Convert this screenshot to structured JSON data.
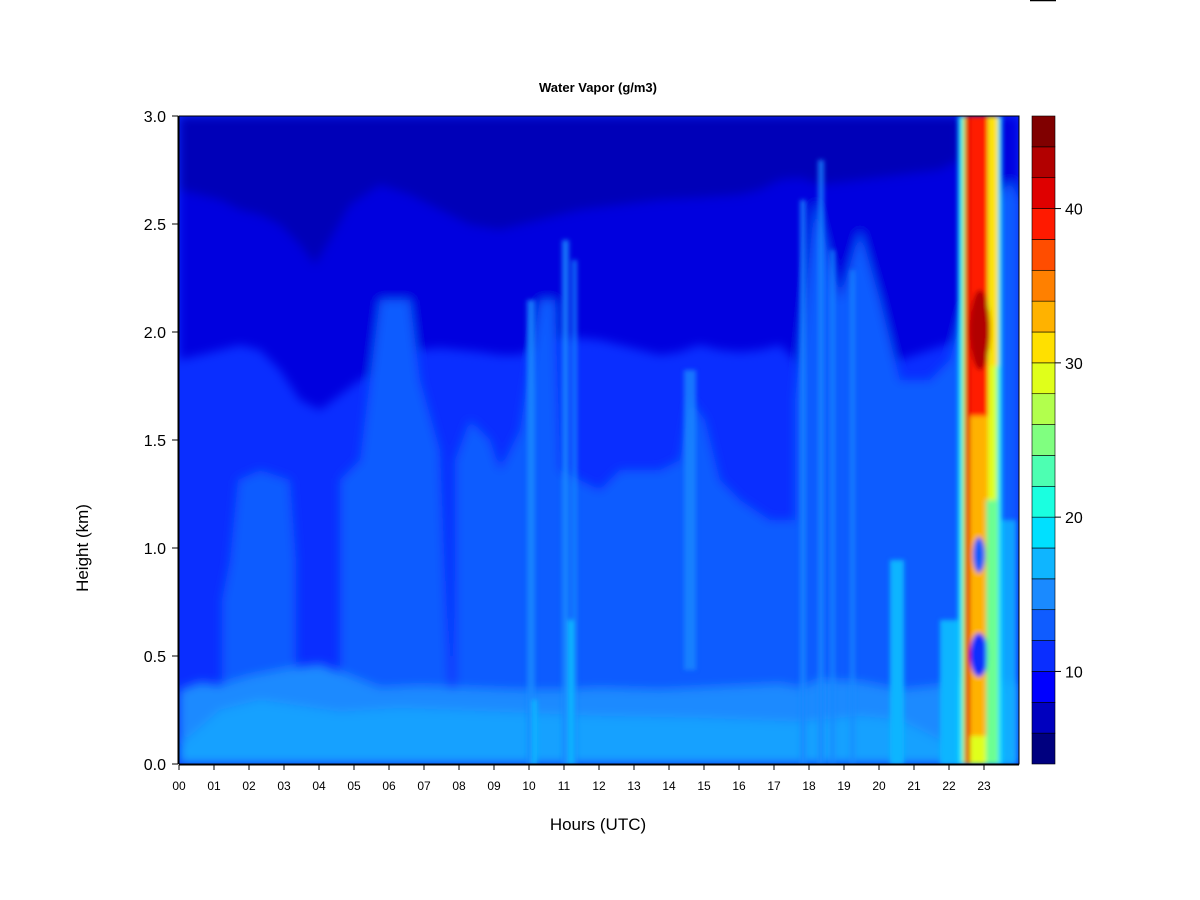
{
  "chart_data": {
    "type": "heatmap",
    "title": "Water Vapor (g/m3)",
    "xlabel": "Hours (UTC)",
    "ylabel": "Height (km)",
    "xlim": [
      0,
      24
    ],
    "ylim": [
      0,
      3.0
    ],
    "x_ticks": [
      "00",
      "01",
      "02",
      "03",
      "04",
      "05",
      "06",
      "07",
      "08",
      "09",
      "10",
      "11",
      "12",
      "13",
      "14",
      "15",
      "16",
      "17",
      "18",
      "19",
      "20",
      "21",
      "22",
      "23"
    ],
    "y_ticks": [
      "0.0",
      "0.5",
      "1.0",
      "1.5",
      "2.0",
      "2.5",
      "3.0"
    ],
    "colorbar": {
      "range": [
        4,
        46
      ],
      "ticks": [
        "10",
        "20",
        "30",
        "40"
      ],
      "tick_values": [
        10,
        20,
        30,
        40
      ],
      "colors": [
        "#00007F",
        "#0000BF",
        "#0000FF",
        "#0A2EFF",
        "#0F5CFF",
        "#1A8AFF",
        "#0FB5FF",
        "#00E0FF",
        "#1AFFE0",
        "#4DFFB2",
        "#80FF80",
        "#B2FF4D",
        "#E0FF1A",
        "#FFE000",
        "#FFB200",
        "#FF8000",
        "#FF4D00",
        "#FF1A00",
        "#DF0000",
        "#B20000",
        "#800000"
      ]
    },
    "grid": false,
    "legend": "right"
  }
}
